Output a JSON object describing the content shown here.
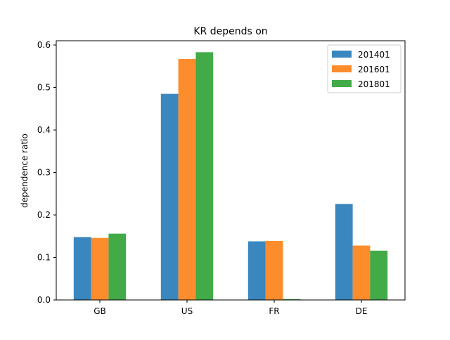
{
  "chart_data": {
    "type": "bar",
    "title": "KR depends on",
    "xlabel": "",
    "ylabel": "dependence ratio",
    "categories": [
      "GB",
      "US",
      "FR",
      "DE"
    ],
    "ylim": [
      0,
      0.61
    ],
    "yticks": [
      "0.0",
      "0.1",
      "0.2",
      "0.3",
      "0.4",
      "0.5",
      "0.6"
    ],
    "grid": false,
    "legend_position": "top-right",
    "series": [
      {
        "name": "201401",
        "color": "#3a87c0",
        "values": [
          0.148,
          0.485,
          0.138,
          0.226
        ]
      },
      {
        "name": "201601",
        "color": "#fd8c2c",
        "values": [
          0.146,
          0.567,
          0.139,
          0.128
        ]
      },
      {
        "name": "201801",
        "color": "#43aa48",
        "values": [
          0.156,
          0.583,
          0.002,
          0.116
        ]
      }
    ]
  }
}
